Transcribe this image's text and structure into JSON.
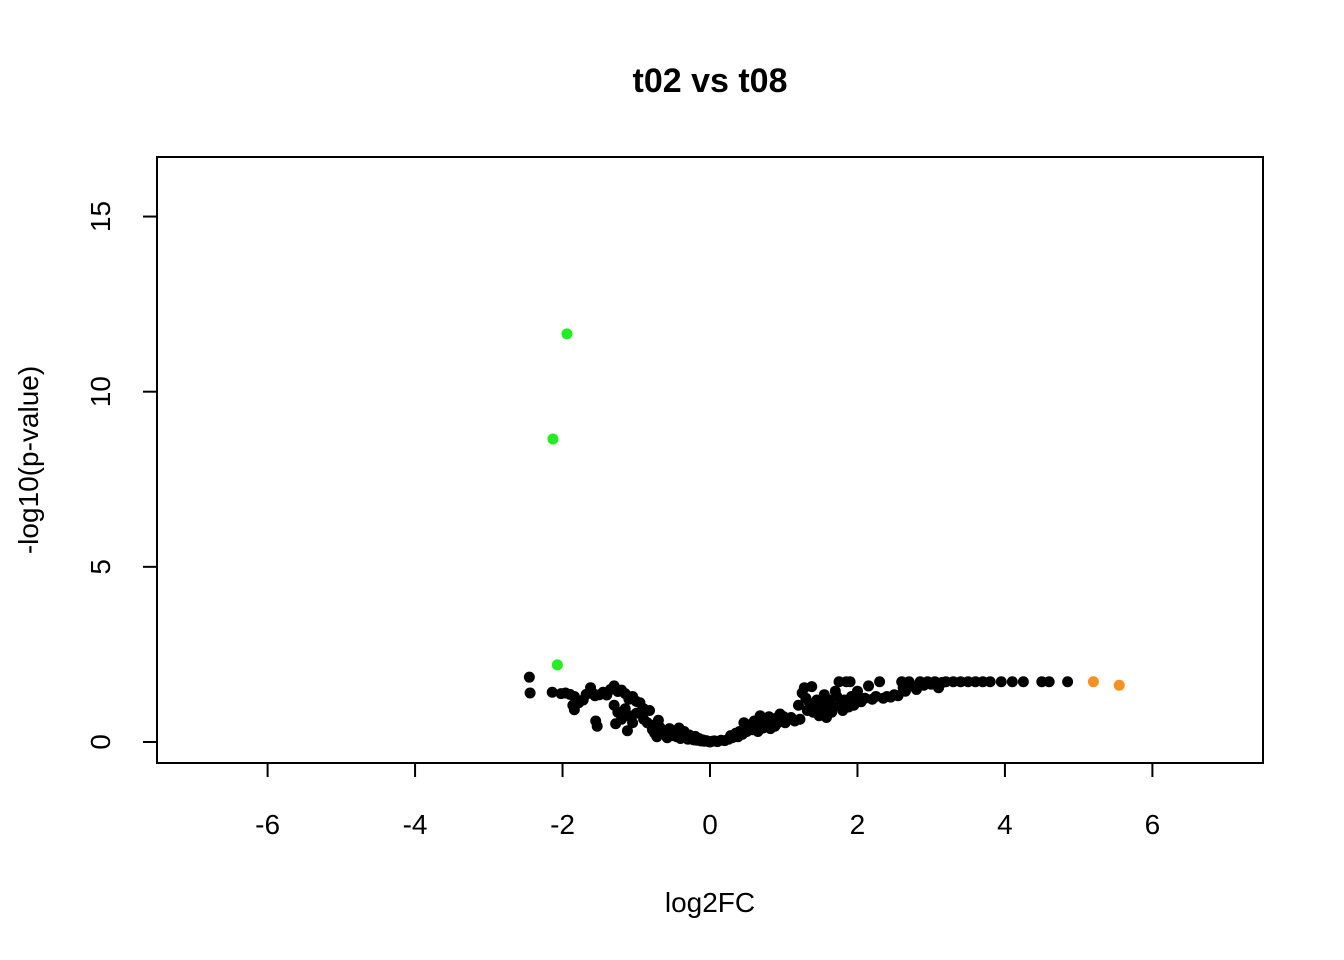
{
  "chart_data": {
    "type": "scatter",
    "title": "t02 vs t08",
    "xlabel": "log2FC",
    "ylabel": "-log10(p-value)",
    "xlim": [
      -7.5,
      7.5
    ],
    "ylim": [
      -0.6,
      16.7
    ],
    "x_ticks": [
      -6,
      -4,
      -2,
      0,
      2,
      4,
      6
    ],
    "y_ticks": [
      0,
      5,
      10,
      15
    ],
    "grid": false,
    "legend": "none",
    "colors": {
      "not_significant": "#000000",
      "down": "#1ef01e",
      "up": "#f7901e",
      "frame": "#000000"
    },
    "series": [
      {
        "color_key": "down",
        "points": [
          [
            -1.94,
            11.65
          ],
          [
            -2.13,
            8.65
          ],
          [
            -2.07,
            2.2
          ]
        ]
      },
      {
        "color_key": "up",
        "points": [
          [
            5.2,
            1.72
          ],
          [
            5.55,
            1.62
          ]
        ]
      },
      {
        "color_key": "not_significant",
        "points": [
          [
            -2.45,
            1.85
          ],
          [
            -2.44,
            1.4
          ],
          [
            -2.14,
            1.42
          ],
          [
            -2.02,
            1.38
          ],
          [
            -1.96,
            1.4
          ],
          [
            -1.9,
            1.36
          ],
          [
            -1.84,
            1.3
          ],
          [
            -1.86,
            1.05
          ],
          [
            -1.84,
            0.92
          ],
          [
            -1.78,
            1.12
          ],
          [
            -1.72,
            1.2
          ],
          [
            -1.68,
            1.36
          ],
          [
            -1.62,
            1.55
          ],
          [
            -1.6,
            1.42
          ],
          [
            -1.56,
            1.32
          ],
          [
            -1.5,
            1.35
          ],
          [
            -1.45,
            1.42
          ],
          [
            -1.4,
            1.34
          ],
          [
            -1.35,
            1.5
          ],
          [
            -1.3,
            1.6
          ],
          [
            -1.25,
            1.44
          ],
          [
            -1.2,
            1.48
          ],
          [
            -1.15,
            1.38
          ],
          [
            -1.1,
            1.22
          ],
          [
            -1.05,
            1.3
          ],
          [
            -1.0,
            1.16
          ],
          [
            -0.95,
            1.12
          ],
          [
            -1.55,
            0.6
          ],
          [
            -1.53,
            0.45
          ],
          [
            -1.3,
            1.05
          ],
          [
            -1.25,
            0.85
          ],
          [
            -1.2,
            0.65
          ],
          [
            -1.28,
            0.52
          ],
          [
            -1.15,
            0.95
          ],
          [
            -1.1,
            0.75
          ],
          [
            -1.05,
            0.55
          ],
          [
            -1.12,
            0.32
          ],
          [
            -1.0,
            0.82
          ],
          [
            -0.9,
            0.95
          ],
          [
            -0.82,
            0.9
          ],
          [
            -0.9,
            0.65
          ],
          [
            -0.85,
            0.55
          ],
          [
            -0.8,
            0.48
          ],
          [
            -0.78,
            0.35
          ],
          [
            -0.75,
            0.25
          ],
          [
            -0.72,
            0.15
          ],
          [
            -0.7,
            0.62
          ],
          [
            -0.68,
            0.42
          ],
          [
            -0.66,
            0.32
          ],
          [
            -0.62,
            0.28
          ],
          [
            -0.6,
            0.2
          ],
          [
            -0.58,
            0.12
          ],
          [
            -0.55,
            0.38
          ],
          [
            -0.52,
            0.25
          ],
          [
            -0.5,
            0.18
          ],
          [
            -0.48,
            0.32
          ],
          [
            -0.45,
            0.15
          ],
          [
            -0.42,
            0.4
          ],
          [
            -0.4,
            0.1
          ],
          [
            -0.38,
            0.22
          ],
          [
            -0.35,
            0.3
          ],
          [
            -0.32,
            0.14
          ],
          [
            -0.3,
            0.08
          ],
          [
            -0.28,
            0.2
          ],
          [
            -0.25,
            0.12
          ],
          [
            -0.22,
            0.06
          ],
          [
            -0.2,
            0.16
          ],
          [
            -0.18,
            0.05
          ],
          [
            -0.15,
            0.1
          ],
          [
            -0.12,
            0.03
          ],
          [
            -0.1,
            0.06
          ],
          [
            -0.08,
            0.02
          ],
          [
            -0.05,
            0.04
          ],
          [
            -0.02,
            0.01
          ],
          [
            0.0,
            0.0
          ],
          [
            0.03,
            0.02
          ],
          [
            0.06,
            0.03
          ],
          [
            0.1,
            0.01
          ],
          [
            0.15,
            0.05
          ],
          [
            0.2,
            0.04
          ],
          [
            0.25,
            0.08
          ],
          [
            0.28,
            0.18
          ],
          [
            0.3,
            0.12
          ],
          [
            0.35,
            0.25
          ],
          [
            0.38,
            0.15
          ],
          [
            0.4,
            0.3
          ],
          [
            0.44,
            0.22
          ],
          [
            0.46,
            0.55
          ],
          [
            0.48,
            0.38
          ],
          [
            0.5,
            0.3
          ],
          [
            0.52,
            0.45
          ],
          [
            0.55,
            0.5
          ],
          [
            0.58,
            0.35
          ],
          [
            0.6,
            0.6
          ],
          [
            0.62,
            0.42
          ],
          [
            0.65,
            0.3
          ],
          [
            0.68,
            0.75
          ],
          [
            0.7,
            0.55
          ],
          [
            0.72,
            0.4
          ],
          [
            0.75,
            0.62
          ],
          [
            0.78,
            0.5
          ],
          [
            0.8,
            0.72
          ],
          [
            0.82,
            0.38
          ],
          [
            0.85,
            0.58
          ],
          [
            0.88,
            0.45
          ],
          [
            0.9,
            0.68
          ],
          [
            0.92,
            0.55
          ],
          [
            0.95,
            0.8
          ],
          [
            0.98,
            0.62
          ],
          [
            1.0,
            0.72
          ],
          [
            1.02,
            0.55
          ],
          [
            1.05,
            0.65
          ],
          [
            1.1,
            0.7
          ],
          [
            1.15,
            0.6
          ],
          [
            1.2,
            1.05
          ],
          [
            1.22,
            0.65
          ],
          [
            1.25,
            1.4
          ],
          [
            1.28,
            1.55
          ],
          [
            1.3,
            1.25
          ],
          [
            1.32,
            0.9
          ],
          [
            1.35,
            1.1
          ],
          [
            1.38,
            1.58
          ],
          [
            1.4,
            0.85
          ],
          [
            1.42,
            1.0
          ],
          [
            1.45,
            1.2
          ],
          [
            1.48,
            0.75
          ],
          [
            1.5,
            0.9
          ],
          [
            1.52,
            1.05
          ],
          [
            1.55,
            1.35
          ],
          [
            1.58,
            0.7
          ],
          [
            1.6,
            0.95
          ],
          [
            1.62,
            1.2
          ],
          [
            1.65,
            0.85
          ],
          [
            1.68,
            1.0
          ],
          [
            1.7,
            1.45
          ],
          [
            1.72,
            1.3
          ],
          [
            1.75,
            1.72
          ],
          [
            1.78,
            1.1
          ],
          [
            1.8,
            0.9
          ],
          [
            1.82,
            1.2
          ],
          [
            1.85,
            1.72
          ],
          [
            1.88,
            1.0
          ],
          [
            1.9,
            1.72
          ],
          [
            1.92,
            1.3
          ],
          [
            1.95,
            1.05
          ],
          [
            1.98,
            1.25
          ],
          [
            2.0,
            1.45
          ],
          [
            2.05,
            1.15
          ],
          [
            2.1,
            1.25
          ],
          [
            2.15,
            1.6
          ],
          [
            2.2,
            1.22
          ],
          [
            2.25,
            1.3
          ],
          [
            2.3,
            1.72
          ],
          [
            2.35,
            1.25
          ],
          [
            2.4,
            1.3
          ],
          [
            2.45,
            1.28
          ],
          [
            2.5,
            1.35
          ],
          [
            2.55,
            1.32
          ],
          [
            2.6,
            1.72
          ],
          [
            2.62,
            1.55
          ],
          [
            2.65,
            1.45
          ],
          [
            2.7,
            1.72
          ],
          [
            2.75,
            1.6
          ],
          [
            2.8,
            1.5
          ],
          [
            2.85,
            1.72
          ],
          [
            2.9,
            1.62
          ],
          [
            2.95,
            1.72
          ],
          [
            3.0,
            1.65
          ],
          [
            3.05,
            1.72
          ],
          [
            3.1,
            1.55
          ],
          [
            3.15,
            1.7
          ],
          [
            3.2,
            1.72
          ],
          [
            3.3,
            1.72
          ],
          [
            3.4,
            1.72
          ],
          [
            3.5,
            1.72
          ],
          [
            3.6,
            1.72
          ],
          [
            3.7,
            1.72
          ],
          [
            3.8,
            1.72
          ],
          [
            3.95,
            1.72
          ],
          [
            4.1,
            1.72
          ],
          [
            4.25,
            1.72
          ],
          [
            4.5,
            1.72
          ],
          [
            4.6,
            1.72
          ],
          [
            4.85,
            1.72
          ]
        ]
      }
    ]
  }
}
